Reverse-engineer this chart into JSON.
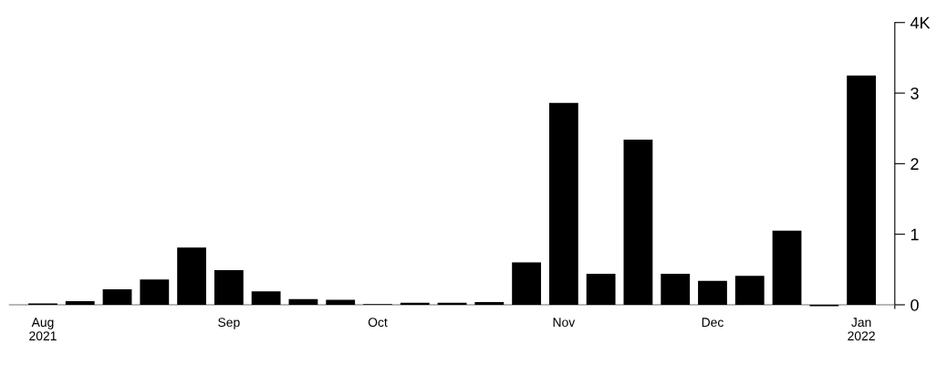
{
  "chart_data": {
    "type": "bar",
    "categories": [
      "Aug\n2021",
      null,
      null,
      null,
      null,
      "Sep",
      null,
      null,
      null,
      "Oct",
      null,
      null,
      null,
      null,
      "Nov",
      null,
      null,
      null,
      "Dec",
      null,
      null,
      null,
      "Jan\n2022"
    ],
    "values": [
      0.02,
      0.05,
      0.22,
      0.36,
      0.81,
      0.49,
      0.19,
      0.08,
      0.07,
      0.01,
      0.03,
      0.03,
      0.04,
      0.6,
      2.86,
      0.44,
      2.34,
      0.44,
      0.34,
      0.41,
      1.05,
      -0.02,
      3.25
    ],
    "color": "#000000",
    "ylim": [
      -0.05,
      4.0
    ],
    "yticks": [
      0,
      1,
      2,
      3,
      {
        "value": 4,
        "label": "4K"
      }
    ],
    "grid": false
  }
}
